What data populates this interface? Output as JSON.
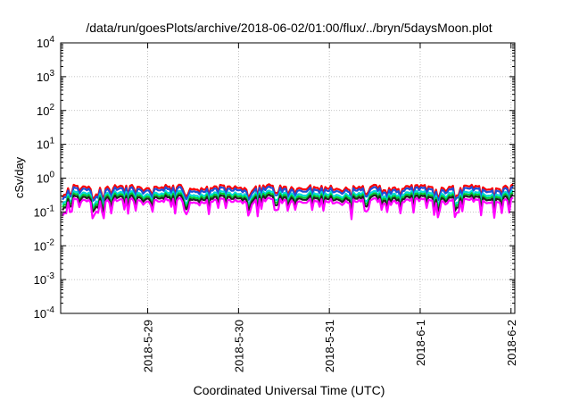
{
  "chart_data": {
    "type": "line",
    "title": "/data/run/goesPlots/archive/2018-06-02/01:00/flux/../bryn/5daysMoon.plot",
    "xlabel": "Coordinated Universal Time (UTC)",
    "ylabel": "cSv/day",
    "yscale": "log",
    "ylim": [
      0.0001,
      10000
    ],
    "xlim": [
      "2018-05-28 01:00",
      "2018-06-02 01:00"
    ],
    "grid": true,
    "y_ticks": [
      {
        "base": "10",
        "exp": "-4"
      },
      {
        "base": "10",
        "exp": "-3"
      },
      {
        "base": "10",
        "exp": "-2"
      },
      {
        "base": "10",
        "exp": "-1"
      },
      {
        "base": "10",
        "exp": "0"
      },
      {
        "base": "10",
        "exp": "1"
      },
      {
        "base": "10",
        "exp": "2"
      },
      {
        "base": "10",
        "exp": "3"
      },
      {
        "base": "10",
        "exp": "4"
      }
    ],
    "x_ticks": [
      {
        "date": "2018-05-29 00:00",
        "label": "2018-5-29"
      },
      {
        "date": "2018-05-30 00:00",
        "label": "2018-5-30"
      },
      {
        "date": "2018-05-31 00:00",
        "label": "2018-5-31"
      },
      {
        "date": "2018-06-01 00:00",
        "label": "2018-6-1"
      },
      {
        "date": "2018-06-02 00:00",
        "label": "2018-6-2"
      }
    ],
    "series": [
      {
        "color": "#ff0000",
        "base": 0.55,
        "dip": 0.55
      },
      {
        "color": "#1f4fd8",
        "base": 0.47,
        "dip": 0.55
      },
      {
        "color": "#00d8d8",
        "base": 0.36,
        "dip": 0.6
      },
      {
        "color": "#00cc33",
        "base": 0.31,
        "dip": 0.62
      },
      {
        "color": "#222222",
        "base": 0.27,
        "dip": 0.65
      },
      {
        "color": "#ff00ff",
        "base": 0.22,
        "dip": 0.75
      }
    ]
  }
}
